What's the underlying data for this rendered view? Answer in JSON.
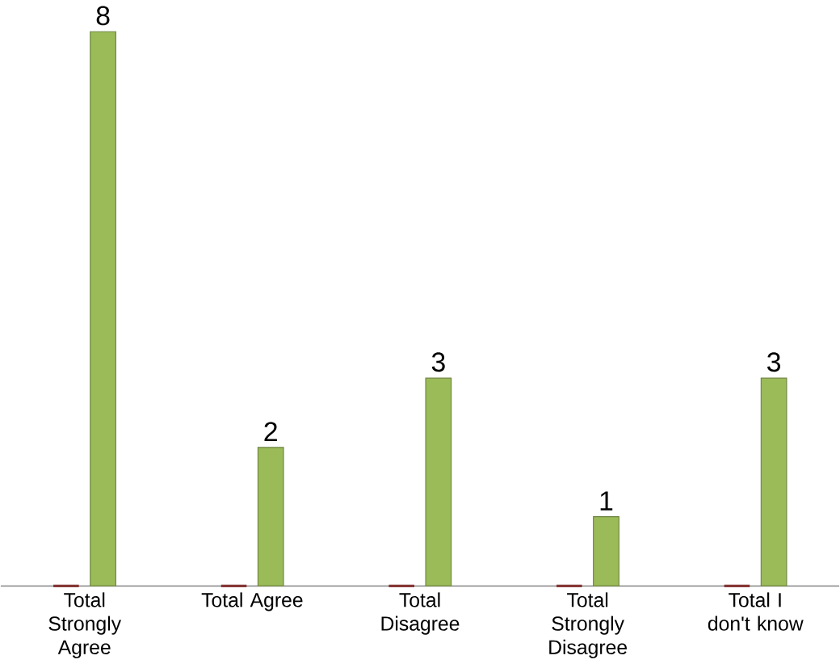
{
  "chart_data": {
    "type": "bar",
    "categories": [
      "Total Strongly Agree",
      "Total Agree",
      "Total Disagree",
      "Total Strongly Disagree",
      "Total I don't know"
    ],
    "series": [
      {
        "color": "#c0504d",
        "values": [
          0,
          0,
          0,
          0,
          0
        ]
      },
      {
        "color": "#9bbb59",
        "values": [
          8,
          2,
          3,
          1,
          3
        ],
        "value_labels": [
          "8",
          "2",
          "3",
          "1",
          "3"
        ]
      }
    ]
  }
}
